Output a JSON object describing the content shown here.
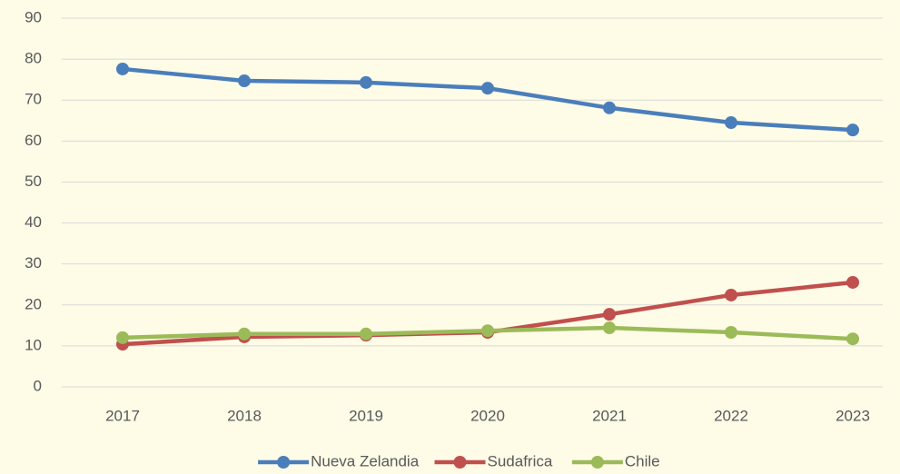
{
  "chart_data": {
    "type": "line",
    "categories": [
      "2017",
      "2018",
      "2019",
      "2020",
      "2021",
      "2022",
      "2023"
    ],
    "series": [
      {
        "name": "Nueva Zelandia",
        "color": "#4a7ebb",
        "values": [
          77.6,
          74.7,
          74.3,
          72.9,
          68.1,
          64.5,
          62.7
        ]
      },
      {
        "name": "Sudafrica",
        "color": "#c0504d",
        "values": [
          10.4,
          12.2,
          12.6,
          13.3,
          17.7,
          22.4,
          25.5
        ]
      },
      {
        "name": "Chile",
        "color": "#9bbb59",
        "values": [
          12.0,
          12.9,
          12.9,
          13.7,
          14.4,
          13.3,
          11.7
        ]
      }
    ],
    "ylim": [
      0,
      90
    ],
    "yticks": [
      0,
      10,
      20,
      30,
      40,
      50,
      60,
      70,
      80,
      90
    ],
    "grid": true,
    "legend": "bottom"
  }
}
